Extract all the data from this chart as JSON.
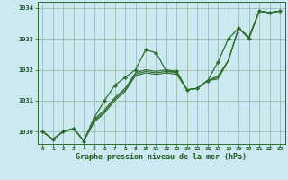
{
  "title": "Graphe pression niveau de la mer (hPa)",
  "bg_color": "#cce8f0",
  "line_color": "#2d6e2d",
  "grid_color": "#99bbaa",
  "text_color": "#1a5c1a",
  "xlim": [
    -0.5,
    23.5
  ],
  "ylim": [
    1029.6,
    1034.2
  ],
  "yticks": [
    1030,
    1031,
    1032,
    1033,
    1034
  ],
  "xticks": [
    0,
    1,
    2,
    3,
    4,
    5,
    6,
    7,
    8,
    9,
    10,
    11,
    12,
    13,
    14,
    15,
    16,
    17,
    18,
    19,
    20,
    21,
    22,
    23
  ],
  "series_main": [
    1030.0,
    1029.75,
    1030.0,
    1030.1,
    1029.7,
    1030.45,
    1031.0,
    1031.5,
    1031.75,
    1032.0,
    1032.65,
    1032.55,
    1031.95,
    1031.95,
    1031.35,
    1031.4,
    1031.65,
    1032.25,
    1033.0,
    1033.35,
    1033.0,
    1033.9,
    1033.85,
    1033.9
  ],
  "series_a": [
    1030.0,
    1029.75,
    1030.0,
    1030.1,
    1029.7,
    1030.3,
    1030.6,
    1031.0,
    1031.3,
    1031.8,
    1031.9,
    1031.85,
    1031.9,
    1031.85,
    1031.35,
    1031.4,
    1031.65,
    1031.7,
    1032.3,
    1033.35,
    1033.05,
    1033.9,
    1033.85,
    1033.9
  ],
  "series_b": [
    1030.0,
    1029.75,
    1030.0,
    1030.1,
    1029.7,
    1030.35,
    1030.65,
    1031.05,
    1031.35,
    1031.85,
    1031.95,
    1031.9,
    1031.95,
    1031.9,
    1031.35,
    1031.4,
    1031.65,
    1031.75,
    1032.3,
    1033.35,
    1033.05,
    1033.9,
    1033.85,
    1033.9
  ],
  "series_c": [
    1030.0,
    1029.75,
    1030.0,
    1030.1,
    1029.7,
    1030.4,
    1030.7,
    1031.1,
    1031.4,
    1031.9,
    1032.0,
    1031.95,
    1032.0,
    1031.95,
    1031.35,
    1031.4,
    1031.65,
    1031.8,
    1032.3,
    1033.35,
    1033.05,
    1033.9,
    1033.85,
    1033.9
  ]
}
